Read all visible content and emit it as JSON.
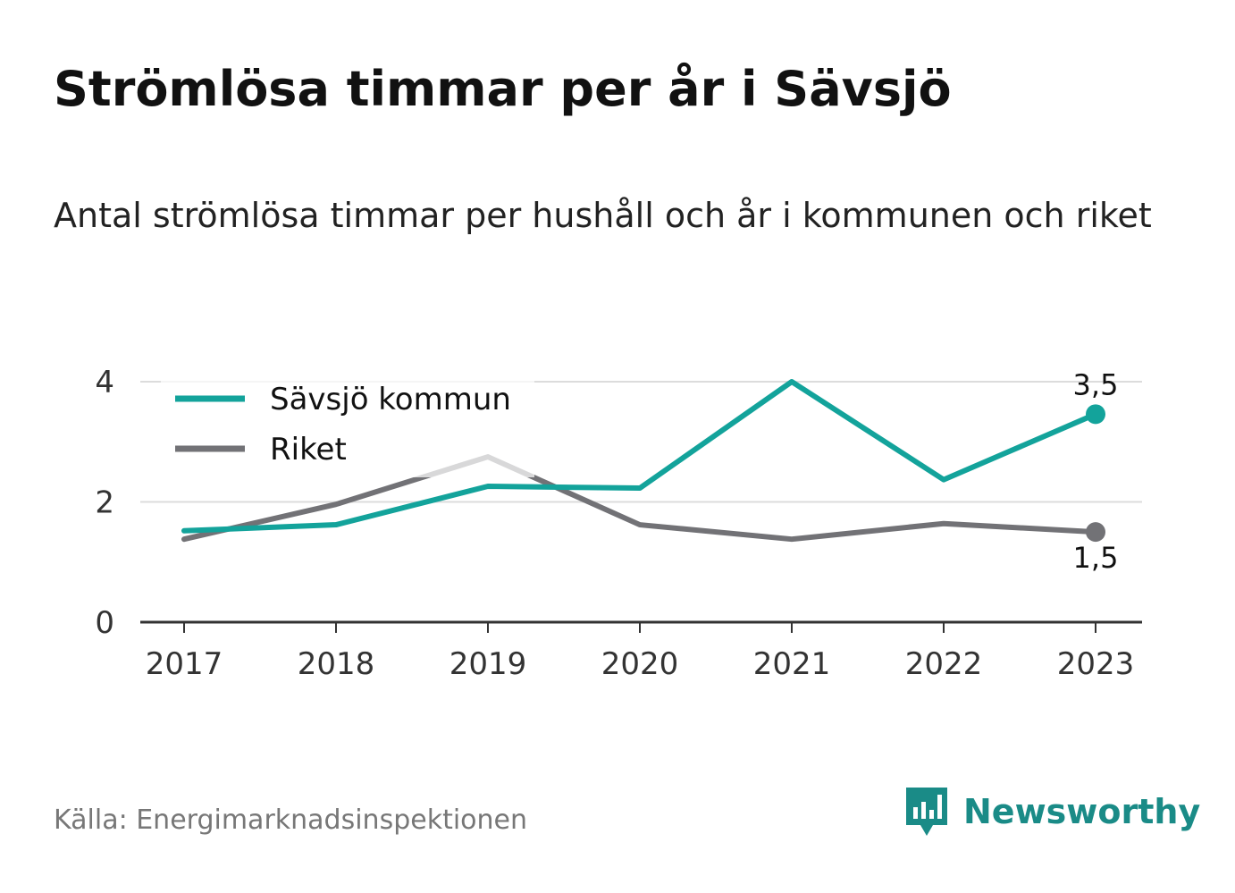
{
  "title": "Strömlösa timmar per år i Sävsjö",
  "subtitle": "Antal strömlösa timmar per hushåll och år i kommunen och riket",
  "source": "Källa: Energimarknadsinspektionen",
  "brand": {
    "name": "Newsworthy",
    "icon": "newsworthy-logo-icon",
    "color": "#1a8b87"
  },
  "chart_data": {
    "type": "line",
    "x": [
      "2017",
      "2018",
      "2019",
      "2020",
      "2021",
      "2022",
      "2023"
    ],
    "ylim": [
      0,
      4
    ],
    "yticks": [
      "0",
      "2",
      "4"
    ],
    "grid": true,
    "legend_position": "top-left",
    "series": [
      {
        "name": "Sävsjö kommun",
        "color": "#13a39b",
        "values": [
          1.52,
          1.62,
          2.26,
          2.23,
          4.0,
          2.37,
          3.46
        ],
        "end_label": "3,5",
        "end_label_position": "above"
      },
      {
        "name": "Riket",
        "color": "#727276",
        "values": [
          1.38,
          1.96,
          2.75,
          1.62,
          1.38,
          1.64,
          1.5
        ],
        "end_label": "1,5",
        "end_label_position": "below"
      }
    ]
  }
}
